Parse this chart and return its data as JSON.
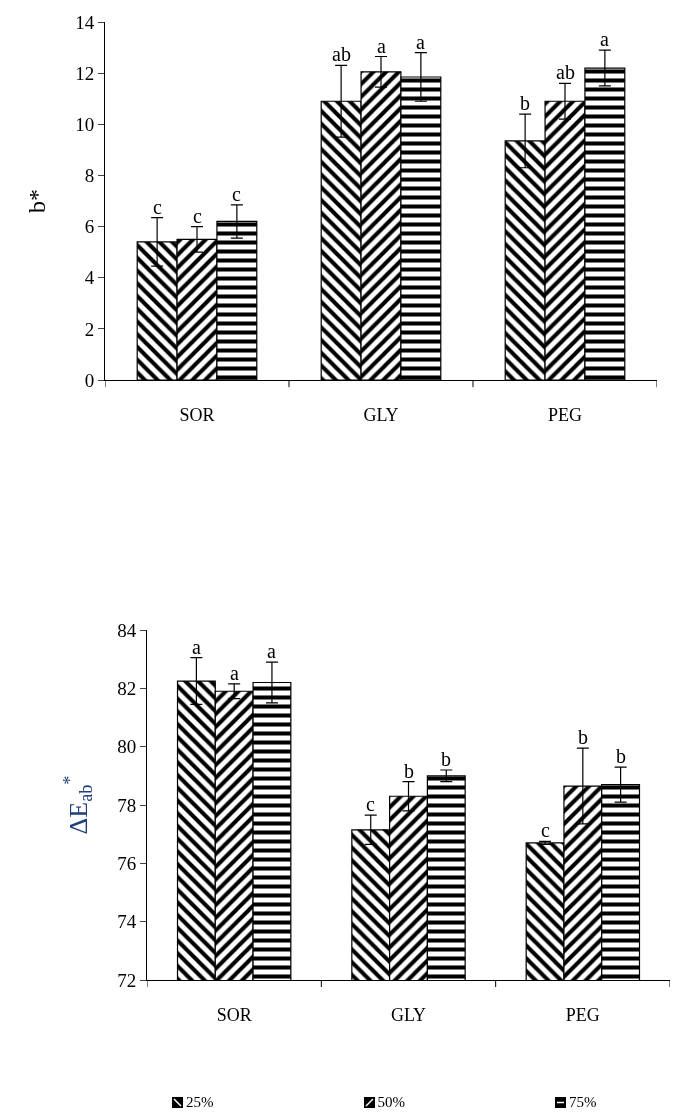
{
  "chart_data": [
    {
      "type": "bar",
      "ylabel": "b*",
      "categories": [
        "SOR",
        "GLY",
        "PEG"
      ],
      "ylim": [
        0,
        14
      ],
      "yticks": [
        0,
        2,
        4,
        6,
        8,
        10,
        12,
        14
      ],
      "grid": false,
      "legend": false,
      "series": [
        {
          "color": "#000000",
          "values": [
            5.4,
            10.9,
            9.35
          ],
          "errors": [
            0.95,
            1.4,
            1.05
          ]
        },
        {
          "color": "#000000",
          "values": [
            5.5,
            12.05,
            10.9
          ],
          "errors": [
            0.5,
            0.6,
            0.7
          ]
        },
        {
          "color": "#000000",
          "values": [
            6.2,
            11.85,
            12.2
          ],
          "errors": [
            0.65,
            0.95,
            0.7
          ]
        }
      ],
      "annotations": [
        "c",
        "c",
        "c",
        "ab",
        "a",
        "a",
        "b",
        "ab",
        "a"
      ]
    },
    {
      "type": "bar",
      "ylabel": "ΔE$_{ab}$$^{*}$",
      "categories": [
        "SOR",
        "GLY",
        "PEG"
      ],
      "ylim": [
        72,
        84
      ],
      "yticks": [
        72,
        74,
        76,
        78,
        80,
        82,
        84
      ],
      "grid": false,
      "legend": "bottom",
      "series": [
        {
          "name": "25%",
          "color": "#000000",
          "values": [
            82.25,
            77.15,
            76.7
          ],
          "errors": [
            0.8,
            0.5,
            0.05
          ]
        },
        {
          "name": "50%",
          "color": "#000000",
          "values": [
            81.9,
            78.3,
            78.65
          ],
          "errors": [
            0.25,
            0.5,
            1.3
          ]
        },
        {
          "name": "75%",
          "color": "#000000",
          "values": [
            82.2,
            79.0,
            78.7
          ],
          "errors": [
            0.7,
            0.2,
            0.6
          ]
        }
      ],
      "annotations": [
        "a",
        "a",
        "a",
        "c",
        "b",
        "b",
        "c",
        "b",
        "b"
      ]
    }
  ]
}
